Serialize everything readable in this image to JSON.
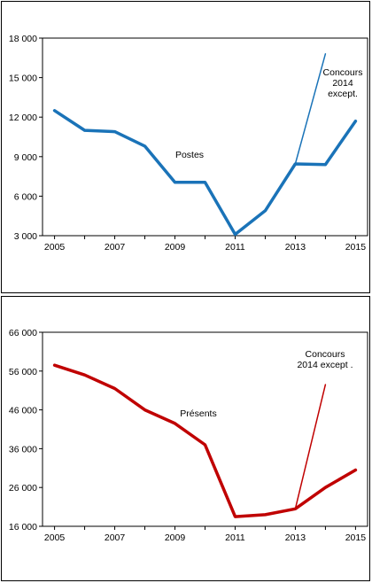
{
  "chart_data": [
    {
      "type": "line",
      "x": [
        2005,
        2006,
        2007,
        2008,
        2009,
        2010,
        2011,
        2012,
        2013,
        2014,
        2015
      ],
      "series": [
        {
          "name": "Postes",
          "values": [
            12500,
            11000,
            10900,
            9800,
            7050,
            7050,
            3100,
            4900,
            8450,
            8400,
            11700
          ],
          "color": "#1a73b8"
        },
        {
          "name": "Concours 2014 except.",
          "x": [
            2013,
            2014
          ],
          "values": [
            8450,
            16800
          ],
          "color": "#1a73b8"
        }
      ],
      "xticks": [
        2005,
        2007,
        2009,
        2011,
        2013,
        2015
      ],
      "xlim": [
        2004.6,
        2015.4
      ],
      "yticks": [
        "3 000",
        "6 000",
        "9 000",
        "12 000",
        "15 000",
        "18 000"
      ],
      "ytick_values": [
        3000,
        6000,
        9000,
        12000,
        15000,
        18000
      ],
      "ylim": [
        3000,
        18000
      ],
      "labels": {
        "main": "Postes",
        "extra": [
          "Concours",
          "2014",
          "except."
        ]
      }
    },
    {
      "type": "line",
      "x": [
        2005,
        2006,
        2007,
        2008,
        2009,
        2010,
        2011,
        2012,
        2013,
        2014,
        2015
      ],
      "series": [
        {
          "name": "Présents",
          "values": [
            57500,
            55000,
            51500,
            46000,
            42500,
            37000,
            18500,
            19000,
            20500,
            26000,
            30500
          ],
          "color": "#c00000"
        },
        {
          "name": "Concours 2014 except.",
          "x": [
            2013,
            2014
          ],
          "values": [
            20500,
            52500
          ],
          "color": "#c00000"
        }
      ],
      "xticks": [
        2005,
        2007,
        2009,
        2011,
        2013,
        2015
      ],
      "xlim": [
        2004.6,
        2015.4
      ],
      "yticks": [
        "16 000",
        "26 000",
        "36 000",
        "46 000",
        "56 000",
        "66 000"
      ],
      "ytick_values": [
        16000,
        26000,
        36000,
        46000,
        56000,
        66000
      ],
      "ylim": [
        16000,
        66000
      ],
      "labels": {
        "main": "Présents",
        "extra": [
          "Concours",
          "2014 except ."
        ]
      }
    }
  ]
}
